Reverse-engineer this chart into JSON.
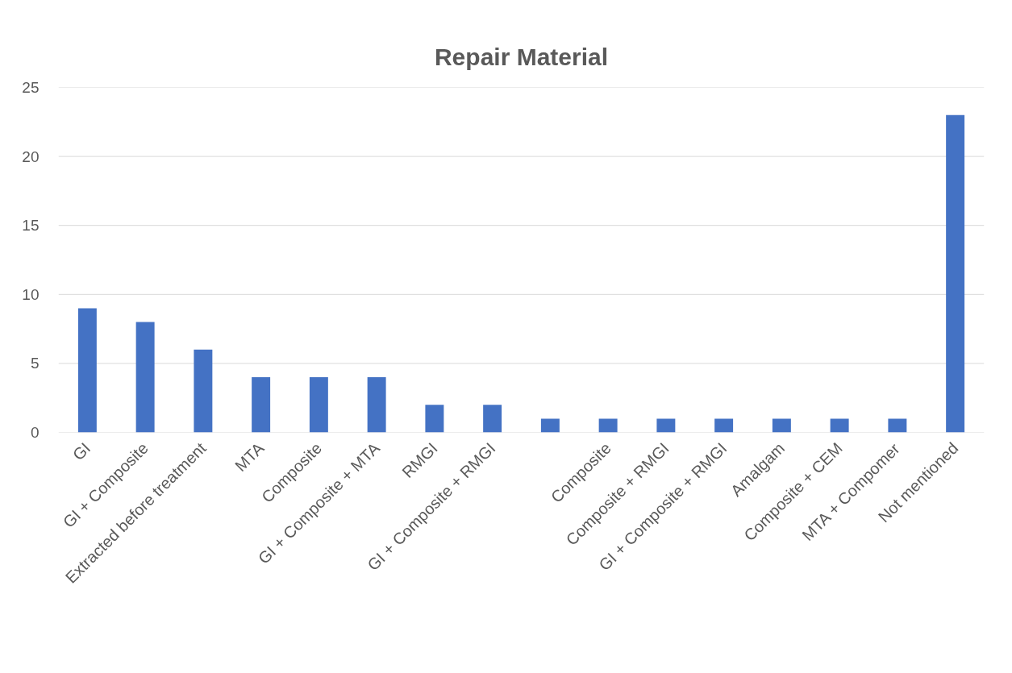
{
  "chart_data": {
    "type": "bar",
    "title": "Repair Material",
    "categories": [
      "GI",
      "GI + Composite",
      "Extracted before treatment",
      "MTA",
      "Composite",
      "GI + Composite + MTA",
      "RMGI",
      "GI + Composite + RMGI",
      null,
      "Composite",
      "Composite + RMGI",
      "GI + Composite + RMGI",
      "Amalgam",
      "Composite + CEM",
      "MTA + Compomer",
      "Not mentioned"
    ],
    "values": [
      9,
      8,
      6,
      4,
      4,
      4,
      2,
      2,
      1,
      1,
      1,
      1,
      1,
      1,
      1,
      23
    ],
    "color": "#4472c4",
    "ylim": [
      0,
      25
    ],
    "yticks": [
      0,
      5,
      10,
      15,
      20,
      25
    ],
    "grid": "y"
  }
}
